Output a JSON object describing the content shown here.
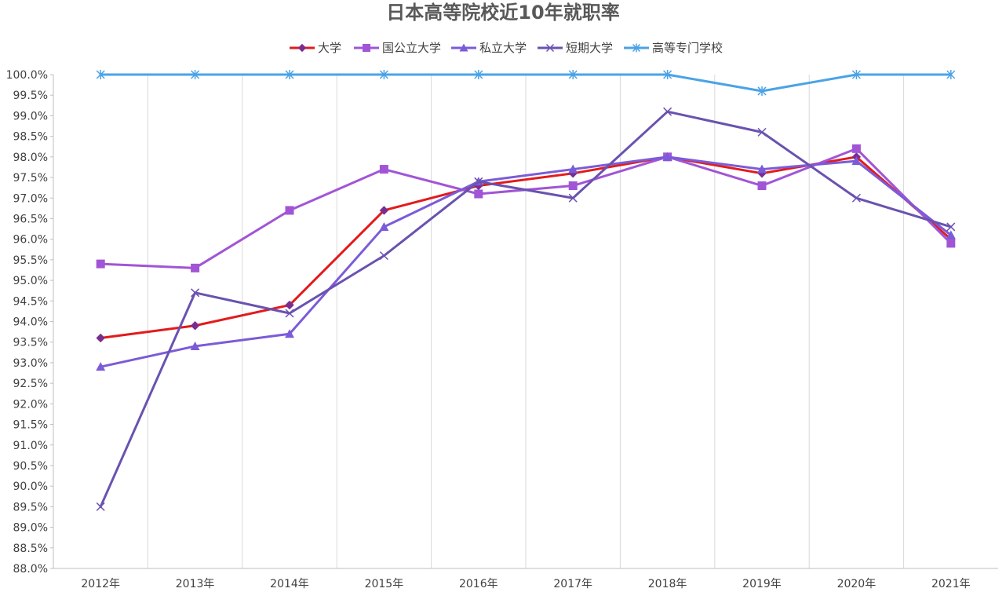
{
  "chart_data": {
    "type": "line",
    "title": "日本高等院校近10年就职率",
    "xlabel": "",
    "ylabel": "",
    "categories": [
      "2012年",
      "2013年",
      "2014年",
      "2015年",
      "2016年",
      "2017年",
      "2018年",
      "2019年",
      "2020年",
      "2021年"
    ],
    "ylim": [
      88.0,
      100.0
    ],
    "ytick_step": 0.5,
    "ytick_labels": [
      "88.0%",
      "88.5%",
      "89.0%",
      "89.5%",
      "90.0%",
      "90.5%",
      "91.0%",
      "91.5%",
      "92.0%",
      "92.5%",
      "93.0%",
      "93.5%",
      "94.0%",
      "94.5%",
      "95.0%",
      "95.5%",
      "96.0%",
      "96.5%",
      "97.0%",
      "97.5%",
      "98.0%",
      "98.5%",
      "99.0%",
      "99.5%",
      "100.0%"
    ],
    "grid": "vertical",
    "legend_position": "top-center",
    "series": [
      {
        "name": "大学",
        "color": "#E31A1C",
        "marker": "diamond",
        "marker_color": "#7B2C8F",
        "values": [
          93.6,
          93.9,
          94.4,
          96.7,
          97.3,
          97.6,
          98.0,
          97.6,
          98.0,
          96.0
        ]
      },
      {
        "name": "国公立大学",
        "color": "#A155D6",
        "marker": "square",
        "marker_color": "#A155D6",
        "values": [
          95.4,
          95.3,
          96.7,
          97.7,
          97.1,
          97.3,
          98.0,
          97.3,
          98.2,
          95.9
        ]
      },
      {
        "name": "私立大学",
        "color": "#7B5BD8",
        "marker": "triangle",
        "marker_color": "#7B5BD8",
        "values": [
          92.9,
          93.4,
          93.7,
          96.3,
          97.4,
          97.7,
          98.0,
          97.7,
          97.9,
          96.1
        ]
      },
      {
        "name": "短期大学",
        "color": "#6A52B0",
        "marker": "x",
        "marker_color": "#6A52B0",
        "values": [
          89.5,
          94.7,
          94.2,
          95.6,
          97.4,
          97.0,
          99.1,
          98.6,
          97.0,
          96.3
        ]
      },
      {
        "name": "高等专门学校",
        "color": "#4AA3E6",
        "marker": "asterisk",
        "marker_color": "#4AA3E6",
        "values": [
          100.0,
          100.0,
          100.0,
          100.0,
          100.0,
          100.0,
          100.0,
          99.6,
          100.0,
          100.0
        ]
      }
    ]
  }
}
